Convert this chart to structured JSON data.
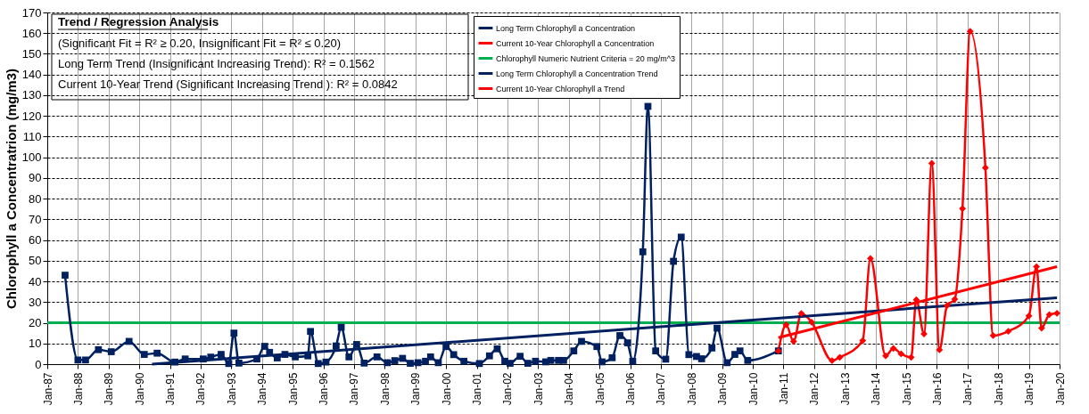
{
  "chart_data": {
    "type": "line",
    "ylabel": "Chlorophyll a Concentratrion (mg/m3)",
    "annotations": [
      "Trend / Regression Analysis",
      "(Significant Fit = R² ≥ 0.20, Insignificant Fit = R² ≤ 0.20)",
      "Long Term Trend (Insignificant Increasing Trend):   R² = 0.1562",
      "Current 10-Year Trend (Significant Increasing Trend ):   R² = 0.0842"
    ],
    "xlim": [
      "1987-01",
      "2020-01"
    ],
    "xticks": [
      {
        "value": "1987-01",
        "label": "Jan-87"
      },
      {
        "value": "1988-01",
        "label": "Jan-88"
      },
      {
        "value": "1989-01",
        "label": "Jan-89"
      },
      {
        "value": "1990-01",
        "label": "Jan-90"
      },
      {
        "value": "1991-01",
        "label": "Jan-91"
      },
      {
        "value": "1992-01",
        "label": "Jan-92"
      },
      {
        "value": "1993-01",
        "label": "Jan-93"
      },
      {
        "value": "1994-01",
        "label": "Jan-94"
      },
      {
        "value": "1995-01",
        "label": "Jan-95"
      },
      {
        "value": "1996-01",
        "label": "Jan-96"
      },
      {
        "value": "1997-01",
        "label": "Jan-97"
      },
      {
        "value": "1998-01",
        "label": "Jan-98"
      },
      {
        "value": "1999-01",
        "label": "Jan-99"
      },
      {
        "value": "2000-01",
        "label": "Jan-00"
      },
      {
        "value": "2001-01",
        "label": "Jan-01"
      },
      {
        "value": "2002-01",
        "label": "Jan-02"
      },
      {
        "value": "2003-01",
        "label": "Jan-03"
      },
      {
        "value": "2004-01",
        "label": "Jan-04"
      },
      {
        "value": "2005-01",
        "label": "Jan-05"
      },
      {
        "value": "2006-01",
        "label": "Jan-06"
      },
      {
        "value": "2007-01",
        "label": "Jan-07"
      },
      {
        "value": "2008-01",
        "label": "Jan-08"
      },
      {
        "value": "2009-01",
        "label": "Jan-09"
      },
      {
        "value": "2010-01",
        "label": "Jan-10"
      },
      {
        "value": "2011-01",
        "label": "Jan-11"
      },
      {
        "value": "2012-01",
        "label": "Jan-12"
      },
      {
        "value": "2013-01",
        "label": "Jan-13"
      },
      {
        "value": "2014-01",
        "label": "Jan-14"
      },
      {
        "value": "2015-01",
        "label": "Jan-15"
      },
      {
        "value": "2016-01",
        "label": "Jan-16"
      },
      {
        "value": "2017-01",
        "label": "Jan-17"
      },
      {
        "value": "2018-01",
        "label": "Jan-18"
      },
      {
        "value": "2019-01",
        "label": "Jan-19"
      },
      {
        "value": "2020-01",
        "label": "Jan-20"
      }
    ],
    "ylim": [
      0,
      170
    ],
    "yticks": [
      0,
      10,
      20,
      30,
      40,
      50,
      60,
      70,
      80,
      90,
      100,
      110,
      120,
      130,
      140,
      150,
      160,
      170
    ],
    "grid": true,
    "legend": "top",
    "line_style": "solid",
    "ref_lines": [
      {
        "axis": "y",
        "value": 20,
        "label": "Chlorophyll Numeric Nutrient Criteria = 20 mg/m^3",
        "color": "#00b050",
        "line_style": "solid"
      }
    ],
    "series": [
      {
        "name": "Long Term Chlorophyll a Concentration",
        "color": "#002060",
        "marker": "square",
        "x": [
          "1987-08",
          "1988-01",
          "1988-04",
          "1988-09",
          "1989-02",
          "1989-09",
          "1990-03",
          "1990-08",
          "1991-03",
          "1991-07",
          "1992-02",
          "1992-05",
          "1992-09",
          "1992-12",
          "1993-02",
          "1993-04",
          "1993-11",
          "1994-02",
          "1994-04",
          "1994-07",
          "1994-10",
          "1995-02",
          "1995-07",
          "1995-08",
          "1995-11",
          "1996-02",
          "1996-06",
          "1996-08",
          "1996-11",
          "1997-02",
          "1997-05",
          "1997-10",
          "1998-02",
          "1998-05",
          "1998-08",
          "1998-11",
          "1999-02",
          "1999-05",
          "1999-07",
          "1999-10",
          "2000-01",
          "2000-04",
          "2000-08",
          "2001-02",
          "2001-06",
          "2001-09",
          "2001-12",
          "2002-02",
          "2002-06",
          "2002-09",
          "2002-12",
          "2003-04",
          "2003-06",
          "2003-09",
          "2003-11",
          "2004-03",
          "2004-06",
          "2004-12",
          "2005-02",
          "2005-06",
          "2005-09",
          "2005-12",
          "2006-02",
          "2006-06",
          "2006-08",
          "2006-11",
          "2007-03",
          "2007-06",
          "2007-09",
          "2007-12",
          "2008-03",
          "2008-05",
          "2008-09",
          "2008-11",
          "2009-03",
          "2009-06",
          "2009-08",
          "2009-11",
          "2010-11"
        ],
        "values": [
          43,
          2,
          2,
          7,
          6,
          11,
          4.7,
          5.3,
          1,
          2.5,
          2.5,
          3.4,
          4.7,
          0.3,
          15,
          0.5,
          2.5,
          8.6,
          5.7,
          3,
          4.7,
          3.5,
          4,
          15.8,
          0.3,
          1,
          8.8,
          17.8,
          3.5,
          9.5,
          0.5,
          3.5,
          0.7,
          1.7,
          2.8,
          0.4,
          0.7,
          1.4,
          3.5,
          0.7,
          8.5,
          4.6,
          1.4,
          0.3,
          4,
          7.4,
          1.4,
          0.4,
          3.8,
          0.4,
          1.4,
          1.1,
          1.8,
          1.8,
          1.8,
          6.4,
          11,
          8.5,
          1.1,
          3.1,
          13.8,
          10.3,
          1.4,
          54.3,
          124.6,
          6.4,
          2.4,
          49.7,
          61.4,
          4.6,
          3.7,
          2.6,
          7.8,
          17.4,
          0.7,
          4.7,
          6.4,
          1.8,
          6.4
        ]
      },
      {
        "name": "Current 10-Year  Chlorophyll a Concentration",
        "color": "#ff0000",
        "marker": "diamond",
        "x": [
          "2010-11",
          "2011-02",
          "2011-05",
          "2011-08",
          "2011-12",
          "2012-08",
          "2012-11",
          "2013-08",
          "2013-11",
          "2014-05",
          "2014-08",
          "2014-11",
          "2015-03",
          "2015-05",
          "2015-08",
          "2015-11",
          "2016-02",
          "2016-05",
          "2016-08",
          "2016-11",
          "2017-02",
          "2017-08",
          "2017-11",
          "2018-05",
          "2019-01",
          "2019-04",
          "2019-06",
          "2019-09",
          "2019-12"
        ],
        "values": [
          6.4,
          19,
          11,
          24.5,
          20.3,
          1.7,
          3.3,
          11.4,
          51.1,
          4,
          7.6,
          5,
          3.3,
          31.1,
          14.6,
          97.1,
          6.9,
          28.3,
          31.4,
          75.2,
          160.9,
          94.9,
          13.8,
          15.9,
          23.3,
          47.1,
          17.4,
          23.9,
          24.6
        ]
      },
      {
        "name": "Long Term Chlorophyll a Concentration Trend",
        "color": "#002060",
        "type": "line",
        "marker": "none",
        "x": [
          "1990-06",
          "2019-12"
        ],
        "values": [
          0,
          32.1
        ]
      },
      {
        "name": "Current 10-Year  Chlorophyll a Trend",
        "color": "#ff0000",
        "type": "line",
        "marker": "none",
        "x": [
          "2010-11",
          "2019-12"
        ],
        "values": [
          12.8,
          47.1
        ]
      }
    ]
  }
}
